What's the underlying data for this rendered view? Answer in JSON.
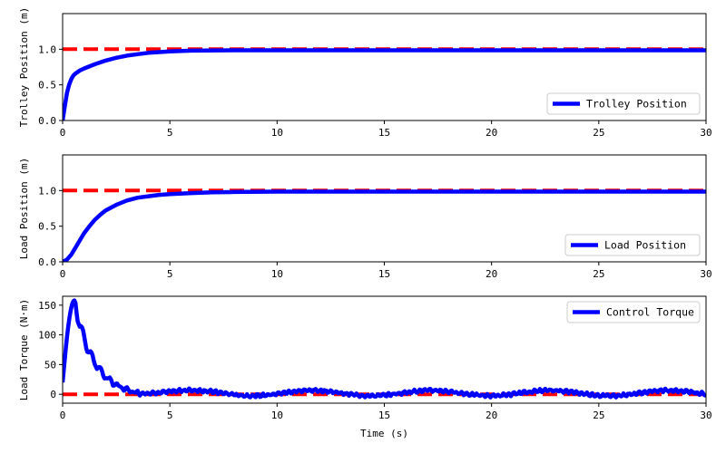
{
  "chart_data": [
    {
      "type": "line",
      "ylabel": "Trolley Position (m)",
      "xlabel": "",
      "xlim": [
        0,
        30
      ],
      "ylim": [
        0,
        1.5
      ],
      "xticks": [
        "0",
        "5",
        "10",
        "15",
        "20",
        "25",
        "30"
      ],
      "yticks": [
        "0.0",
        "0.5",
        "1.0"
      ],
      "legend_position": "lower-right",
      "series": [
        {
          "name": "Trolley Position",
          "color": "#0000ff",
          "style": "solid",
          "x": [
            0,
            0.1,
            0.2,
            0.3,
            0.4,
            0.5,
            0.6,
            0.8,
            1.0,
            1.5,
            2.0,
            2.5,
            3.0,
            3.5,
            4.0,
            5.0,
            6.0,
            8.0,
            10.0,
            15.0,
            20.0,
            25.0,
            30.0
          ],
          "values": [
            0.0,
            0.2,
            0.38,
            0.5,
            0.58,
            0.63,
            0.66,
            0.7,
            0.73,
            0.79,
            0.84,
            0.88,
            0.91,
            0.93,
            0.95,
            0.97,
            0.98,
            0.985,
            0.985,
            0.985,
            0.985,
            0.985,
            0.985
          ]
        },
        {
          "name": "",
          "color": "#ff0000",
          "style": "dashed",
          "x": [
            0,
            30
          ],
          "values": [
            1.0,
            1.0
          ]
        }
      ]
    },
    {
      "type": "line",
      "ylabel": "Load Position (m)",
      "xlabel": "",
      "xlim": [
        0,
        30
      ],
      "ylim": [
        0,
        1.5
      ],
      "xticks": [
        "0",
        "5",
        "10",
        "15",
        "20",
        "25",
        "30"
      ],
      "yticks": [
        "0.0",
        "0.5",
        "1.0"
      ],
      "legend_position": "lower-right",
      "series": [
        {
          "name": "Load Position",
          "color": "#0000ff",
          "style": "solid",
          "x": [
            0,
            0.2,
            0.4,
            0.6,
            0.8,
            1.0,
            1.25,
            1.5,
            1.75,
            2.0,
            2.5,
            3.0,
            3.5,
            4.0,
            4.5,
            5.0,
            6.0,
            7.0,
            8.0,
            10.0,
            15.0,
            20.0,
            25.0,
            30.0
          ],
          "values": [
            0.0,
            0.03,
            0.1,
            0.2,
            0.3,
            0.4,
            0.5,
            0.59,
            0.66,
            0.72,
            0.8,
            0.86,
            0.9,
            0.92,
            0.94,
            0.95,
            0.965,
            0.975,
            0.98,
            0.985,
            0.985,
            0.985,
            0.985,
            0.985
          ]
        },
        {
          "name": "",
          "color": "#ff0000",
          "style": "dashed",
          "x": [
            0,
            30
          ],
          "values": [
            1.0,
            1.0
          ]
        }
      ]
    },
    {
      "type": "line",
      "ylabel": "Load Torque (N·m)",
      "xlabel": "Time (s)",
      "xlim": [
        0,
        30
      ],
      "ylim": [
        -15,
        165
      ],
      "xticks": [
        "0",
        "5",
        "10",
        "15",
        "20",
        "25",
        "30"
      ],
      "yticks": [
        "0",
        "50",
        "100",
        "150"
      ],
      "legend_position": "upper-right",
      "series": [
        {
          "name": "Control Torque",
          "color": "#0000ff",
          "style": "solid",
          "peak": 158,
          "peak_time": 0.55,
          "decay_time_constant": 0.85,
          "steady_value": 2
        },
        {
          "name": "",
          "color": "#ff0000",
          "style": "dashed",
          "x": [
            0,
            30
          ],
          "values": [
            0,
            0
          ]
        }
      ]
    }
  ]
}
